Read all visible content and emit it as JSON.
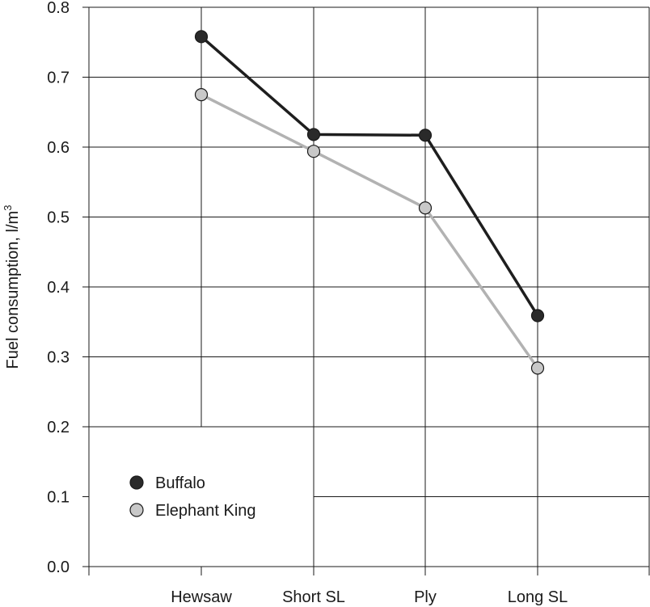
{
  "chart_data": {
    "type": "line",
    "categories": [
      "Hewsaw",
      "Short SL",
      "Ply",
      "Long SL"
    ],
    "series": [
      {
        "name": "Buffalo",
        "values": [
          0.758,
          0.618,
          0.617,
          0.359
        ],
        "color": "#2a2a2a",
        "line_color": "#1e1e1e"
      },
      {
        "name": "Elephant King",
        "values": [
          0.675,
          0.594,
          0.513,
          0.284
        ],
        "color": "#c8c8c8",
        "line_color": "#b2b2b2"
      }
    ],
    "ylabel_main": "Fuel consumption, l/m",
    "ylabel_sup": "3",
    "xlabel": "",
    "ylim": [
      0,
      0.8
    ],
    "yticks": [
      "0.0",
      "0.1",
      "0.2",
      "0.3",
      "0.4",
      "0.5",
      "0.6",
      "0.7",
      "0.8"
    ],
    "grid": true,
    "legend_position": "lower-left"
  }
}
